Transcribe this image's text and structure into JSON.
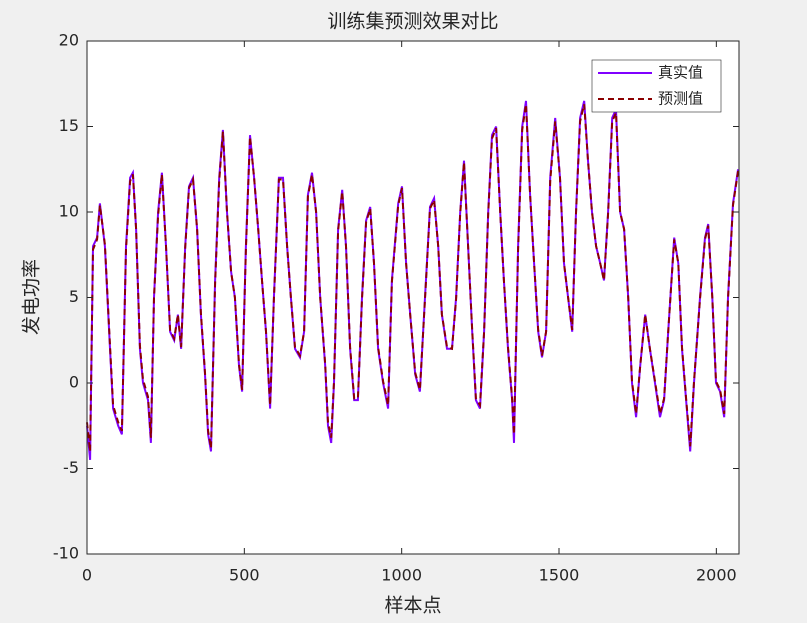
{
  "chart_data": {
    "type": "line",
    "title": "训练集预测效果对比",
    "x_label": "样本点",
    "y_label": "发电功率",
    "x": [
      0,
      10,
      19,
      32,
      41,
      57,
      73,
      83,
      99,
      111,
      124,
      137,
      146,
      156,
      168,
      178,
      194,
      203,
      213,
      226,
      238,
      251,
      264,
      277,
      289,
      299,
      312,
      324,
      337,
      350,
      362,
      375,
      385,
      394,
      407,
      420,
      432,
      445,
      458,
      470,
      483,
      493,
      505,
      518,
      531,
      544,
      556,
      569,
      582,
      594,
      610,
      623,
      636,
      648,
      661,
      677,
      690,
      702,
      715,
      728,
      741,
      757,
      766,
      776,
      785,
      798,
      811,
      823,
      836,
      849,
      861,
      874,
      887,
      900,
      912,
      925,
      941,
      957,
      969,
      989,
      1001,
      1014,
      1027,
      1043,
      1058,
      1074,
      1090,
      1103,
      1116,
      1128,
      1144,
      1160,
      1173,
      1186,
      1198,
      1211,
      1224,
      1236,
      1249,
      1262,
      1275,
      1287,
      1300,
      1313,
      1325,
      1338,
      1351,
      1357,
      1370,
      1383,
      1395,
      1408,
      1421,
      1434,
      1446,
      1459,
      1472,
      1488,
      1503,
      1516,
      1529,
      1542,
      1554,
      1567,
      1580,
      1592,
      1605,
      1618,
      1631,
      1643,
      1656,
      1669,
      1681,
      1694,
      1707,
      1720,
      1732,
      1745,
      1758,
      1774,
      1789,
      1805,
      1821,
      1834,
      1847,
      1866,
      1879,
      1891,
      1904,
      1917,
      1929,
      1948,
      1964,
      1974,
      1987,
      1999,
      2012,
      2025,
      2037,
      2053,
      2069
    ],
    "series": [
      {
        "name": "真实值",
        "color": "#8000ff",
        "line_style": "solid",
        "values": [
          -2.5,
          -4.5,
          8,
          8.5,
          10.5,
          8,
          2,
          -1.5,
          -2.5,
          -3,
          8,
          12,
          12.3,
          9,
          2,
          0,
          -1,
          -3.5,
          5,
          10,
          12.3,
          8,
          3,
          2.5,
          4,
          2,
          8,
          11.5,
          12,
          9,
          4,
          0.5,
          -3,
          -4,
          6,
          12,
          14.8,
          10,
          6.5,
          5,
          1,
          -0.5,
          8,
          14.5,
          12,
          9,
          6,
          3,
          -1.5,
          5,
          12,
          12,
          8,
          5,
          2,
          1.5,
          3,
          11,
          12.3,
          10,
          5,
          1,
          -2.5,
          -3.5,
          0,
          9,
          11.3,
          8,
          2,
          -1,
          -1,
          5,
          9.5,
          10.3,
          7,
          2,
          0,
          -1.5,
          6,
          10.5,
          11.5,
          7,
          4,
          0.5,
          -0.5,
          5,
          10.3,
          10.8,
          8,
          4,
          2,
          2,
          5,
          10,
          13,
          8,
          3,
          -1,
          -1.5,
          3,
          10,
          14.5,
          15,
          10,
          6,
          2,
          -1,
          -3.5,
          8,
          15,
          16.5,
          11,
          7,
          3,
          1.5,
          3,
          12,
          15.5,
          12,
          7,
          5,
          3,
          10,
          15.5,
          16.5,
          13,
          10,
          8,
          7,
          6,
          10,
          15.5,
          16,
          10,
          9,
          5,
          0,
          -2,
          1,
          4,
          2,
          0,
          -2,
          -1,
          3,
          8.5,
          7,
          2,
          -1,
          -4,
          0,
          5,
          8.5,
          9.3,
          5,
          0,
          -0.5,
          -2,
          5,
          10.5,
          12.5
        ]
      },
      {
        "name": "预测值",
        "color": "#8b0000",
        "line_style": "dashed",
        "values": [
          -2.3,
          -4,
          7.8,
          8.4,
          10.4,
          8.1,
          2.2,
          -1.3,
          -2.3,
          -2.8,
          7.8,
          11.8,
          12.2,
          9,
          2.2,
          0.2,
          -0.8,
          -3.2,
          5,
          9.8,
          12.2,
          8,
          3.1,
          2.6,
          4,
          2.1,
          7.9,
          11.4,
          11.9,
          9,
          4.1,
          0.6,
          -2.8,
          -3.8,
          5.8,
          11.8,
          14.7,
          10,
          6.5,
          5,
          1.1,
          -0.4,
          7.8,
          14.4,
          12,
          9,
          6,
          3,
          -1.3,
          4.9,
          11.9,
          11.9,
          8,
          5,
          2.1,
          1.6,
          3,
          10.9,
          12.2,
          10,
          5,
          1.1,
          -2.3,
          -3.2,
          0.1,
          8.9,
          11.2,
          8,
          2.1,
          -0.9,
          -0.9,
          4.9,
          9.4,
          10.2,
          7,
          2.1,
          0.1,
          -1.3,
          5.9,
          10.4,
          11.4,
          7,
          4,
          0.6,
          -0.4,
          4.9,
          10.2,
          10.7,
          8,
          4,
          2.1,
          2,
          4.9,
          9.9,
          12.9,
          8,
          3.1,
          -0.9,
          -1.3,
          3,
          9.9,
          14.3,
          14.9,
          10,
          6,
          2.1,
          -0.9,
          -3,
          7.8,
          14.8,
          16.3,
          11,
          7,
          3.1,
          1.6,
          3,
          11.8,
          15.3,
          12,
          7,
          5,
          3.1,
          9.9,
          15.3,
          16.3,
          13,
          10,
          8,
          7,
          6,
          9.9,
          15.3,
          15.8,
          10,
          9,
          5,
          0.1,
          -1.8,
          1,
          4,
          2,
          0.1,
          -1.8,
          -0.9,
          3,
          8.4,
          7,
          2.1,
          -0.9,
          -3.7,
          0.1,
          4.9,
          8.4,
          9.2,
          5,
          0.1,
          -0.4,
          -1.8,
          4.9,
          10.4,
          12.4
        ]
      }
    ],
    "xlim": [
      0,
      2072
    ],
    "ylim": [
      -10,
      20
    ],
    "xticks": [
      0,
      500,
      1000,
      1500,
      2000
    ],
    "yticks": [
      -10,
      -5,
      0,
      5,
      10,
      15,
      20
    ],
    "legend": "upper right"
  }
}
